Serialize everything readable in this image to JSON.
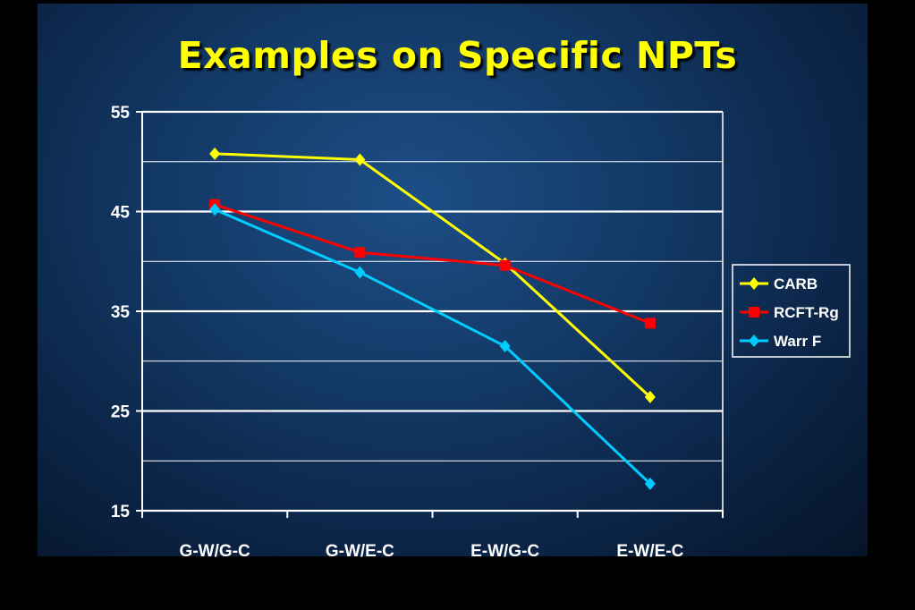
{
  "title": "Examples on Specific NPTs",
  "chart_data": {
    "type": "line",
    "title": "Examples on Specific NPTs",
    "xlabel": "",
    "ylabel": "",
    "categories": [
      "G-W/G-C",
      "G-W/E-C",
      "E-W/G-C",
      "E-W/E-C"
    ],
    "ylim": [
      15,
      55
    ],
    "yticks": [
      15,
      25,
      35,
      45,
      55
    ],
    "grid": true,
    "legend_position": "right",
    "series": [
      {
        "name": "CARB",
        "values": [
          50.8,
          50.2,
          39.8,
          26.4
        ],
        "color": "#ffff00",
        "marker": "diamond"
      },
      {
        "name": "RCFT-Rg",
        "values": [
          45.7,
          40.9,
          39.6,
          33.8
        ],
        "color": "#ff0000",
        "marker": "square"
      },
      {
        "name": "Warr F",
        "values": [
          45.2,
          38.9,
          31.5,
          17.7
        ],
        "color": "#00ccff",
        "marker": "diamond"
      }
    ]
  }
}
